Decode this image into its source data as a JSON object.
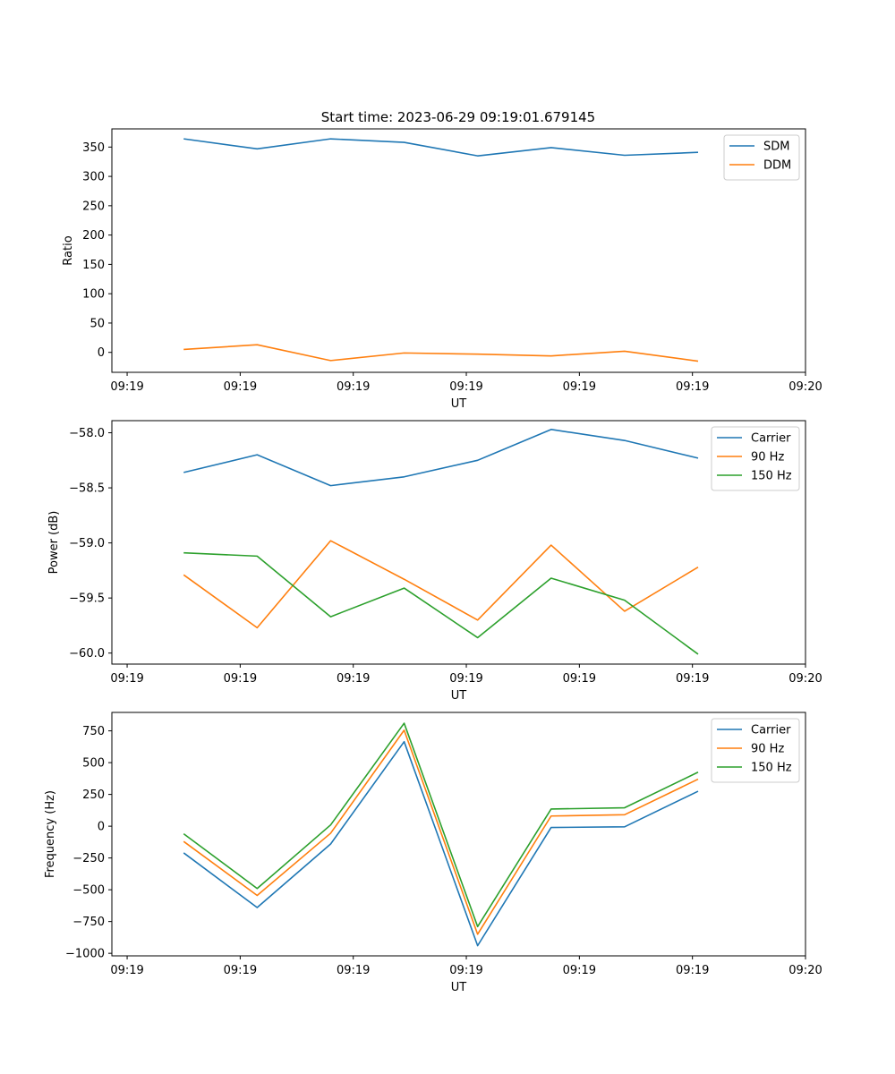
{
  "figure": {
    "title": "Start time: 2023-06-29 09:19:01.679145"
  },
  "colors": {
    "blue": "#1f77b4",
    "orange": "#ff7f0e",
    "green": "#2ca02c"
  },
  "chart_data": [
    {
      "type": "line",
      "title": "Start time: 2023-06-29 09:19:01.679145",
      "xlabel": "UT",
      "ylabel": "Ratio",
      "x_tick_labels": [
        "09:19",
        "09:19",
        "09:19",
        "09:19",
        "09:19",
        "09:19",
        "09:20"
      ],
      "x_ticks": [
        0,
        1,
        2,
        3,
        4,
        5,
        6
      ],
      "xlim": [
        -0.135,
        6.0
      ],
      "x": [
        0.5,
        1.15,
        1.8,
        2.45,
        3.1,
        3.75,
        4.4,
        5.05
      ],
      "ylim": [
        -34,
        381
      ],
      "yticks": [
        0,
        50,
        100,
        150,
        200,
        250,
        300,
        350
      ],
      "grid": false,
      "legend_position": "upper right",
      "series": [
        {
          "name": "SDM",
          "color": "#1f77b4",
          "values": [
            364,
            347,
            364,
            358,
            335,
            349,
            336,
            341
          ]
        },
        {
          "name": "DDM",
          "color": "#ff7f0e",
          "values": [
            5,
            13,
            -14,
            -1,
            -3,
            -6,
            2,
            -15
          ]
        }
      ]
    },
    {
      "type": "line",
      "xlabel": "UT",
      "ylabel": "Power (dB)",
      "x_tick_labels": [
        "09:19",
        "09:19",
        "09:19",
        "09:19",
        "09:19",
        "09:19",
        "09:20"
      ],
      "x_ticks": [
        0,
        1,
        2,
        3,
        4,
        5,
        6
      ],
      "xlim": [
        -0.135,
        6.0
      ],
      "x": [
        0.5,
        1.15,
        1.8,
        2.45,
        3.1,
        3.75,
        4.4,
        5.05
      ],
      "ylim": [
        -60.1,
        -57.89
      ],
      "yticks": [
        -60.0,
        -59.5,
        -59.0,
        -58.5,
        -58.0
      ],
      "ytick_labels": [
        "−60.0",
        "−59.5",
        "−59.0",
        "−58.5",
        "−58.0"
      ],
      "grid": false,
      "legend_position": "upper right",
      "series": [
        {
          "name": "Carrier",
          "color": "#1f77b4",
          "values": [
            -58.36,
            -58.2,
            -58.48,
            -58.4,
            -58.25,
            -57.97,
            -58.07,
            -58.23
          ]
        },
        {
          "name": "90 Hz",
          "color": "#ff7f0e",
          "values": [
            -59.29,
            -59.77,
            -58.98,
            -59.33,
            -59.7,
            -59.02,
            -59.62,
            -59.22
          ]
        },
        {
          "name": "150 Hz",
          "color": "#2ca02c",
          "values": [
            -59.09,
            -59.12,
            -59.67,
            -59.41,
            -59.86,
            -59.32,
            -59.52,
            -60.01
          ]
        }
      ]
    },
    {
      "type": "line",
      "xlabel": "UT",
      "ylabel": "Frequency (Hz)",
      "x_tick_labels": [
        "09:19",
        "09:19",
        "09:19",
        "09:19",
        "09:19",
        "09:19",
        "09:20"
      ],
      "x_ticks": [
        0,
        1,
        2,
        3,
        4,
        5,
        6
      ],
      "xlim": [
        -0.135,
        6.0
      ],
      "x": [
        0.5,
        1.15,
        1.8,
        2.45,
        3.1,
        3.75,
        4.4,
        5.05
      ],
      "ylim": [
        -1020,
        895
      ],
      "yticks": [
        -1000,
        -750,
        -500,
        -250,
        0,
        250,
        500,
        750
      ],
      "ytick_labels": [
        "−1000",
        "−750",
        "−500",
        "−250",
        "0",
        "250",
        "500",
        "750"
      ],
      "grid": false,
      "legend_position": "upper right",
      "series": [
        {
          "name": "Carrier",
          "color": "#1f77b4",
          "values": [
            -210,
            -640,
            -140,
            665,
            -940,
            -10,
            -5,
            275
          ]
        },
        {
          "name": "90 Hz",
          "color": "#ff7f0e",
          "values": [
            -120,
            -545,
            -55,
            755,
            -850,
            80,
            90,
            370
          ]
        },
        {
          "name": "150 Hz",
          "color": "#2ca02c",
          "values": [
            -60,
            -490,
            10,
            810,
            -790,
            135,
            145,
            425
          ]
        }
      ]
    }
  ]
}
